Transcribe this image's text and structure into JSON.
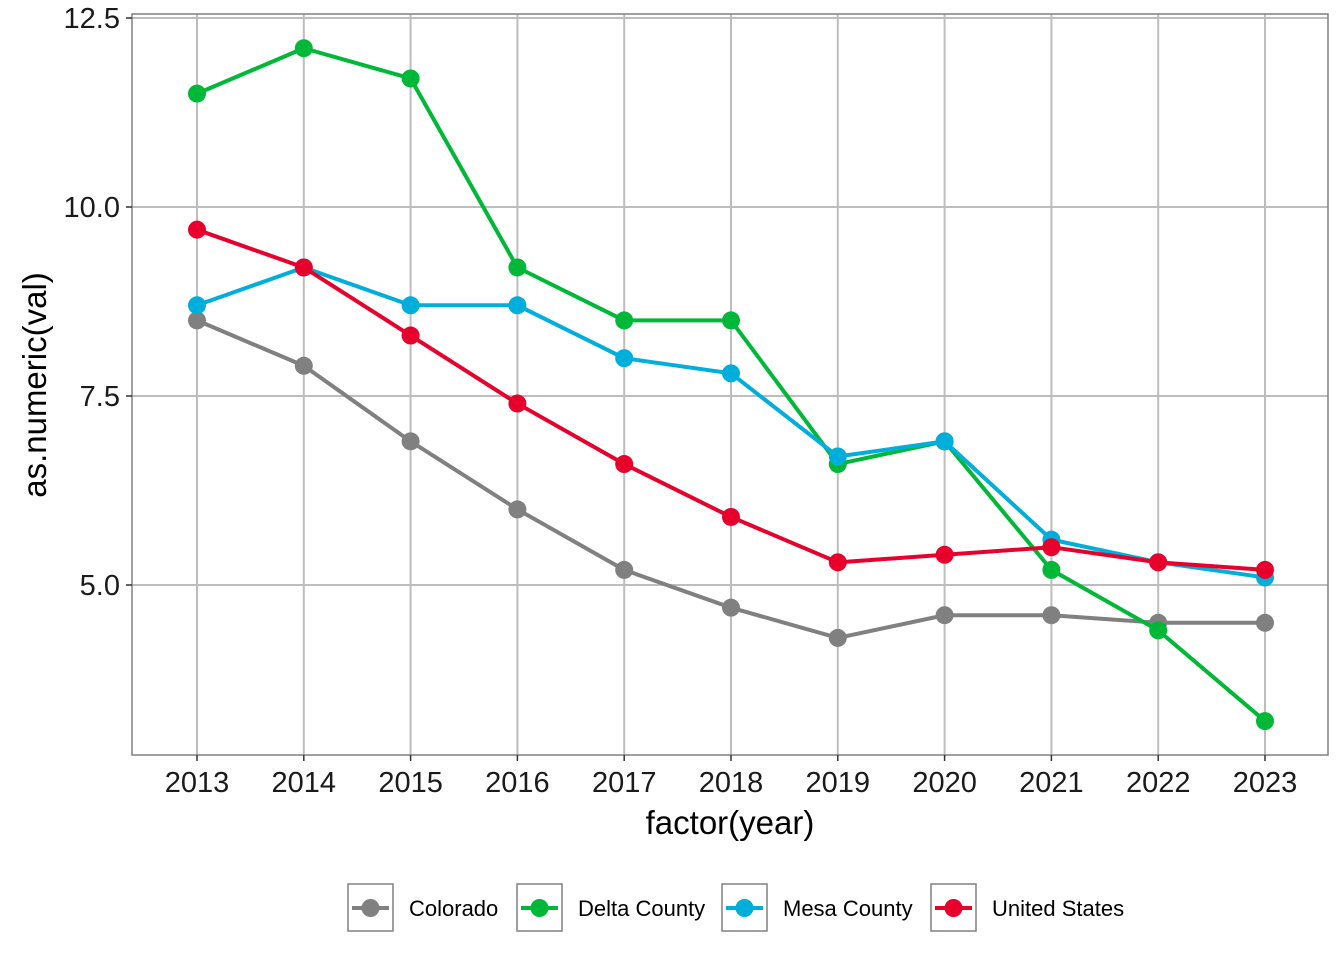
{
  "chart_data": {
    "type": "line",
    "title": "",
    "xlabel": "factor(year)",
    "ylabel": "as.numeric(val)",
    "categories": [
      "2013",
      "2014",
      "2015",
      "2016",
      "2017",
      "2018",
      "2019",
      "2020",
      "2021",
      "2022",
      "2023"
    ],
    "y_ticks": [
      "5.0",
      "7.5",
      "10.0",
      "12.5"
    ],
    "y_tick_values": [
      5.0,
      7.5,
      10.0,
      12.5
    ],
    "ylim": [
      2.75,
      12.5
    ],
    "grid": true,
    "legend_position": "bottom",
    "series": [
      {
        "name": "Colorado",
        "color": "#808080",
        "values": [
          8.5,
          7.9,
          6.9,
          6.0,
          5.2,
          4.7,
          4.3,
          4.6,
          4.6,
          4.5,
          4.5
        ]
      },
      {
        "name": "Delta County",
        "color": "#00B837",
        "values": [
          11.5,
          12.1,
          11.7,
          9.2,
          8.5,
          8.5,
          6.6,
          6.9,
          5.2,
          4.4,
          3.2
        ]
      },
      {
        "name": "Mesa County",
        "color": "#00AEDB",
        "values": [
          8.7,
          9.2,
          8.7,
          8.7,
          8.0,
          7.8,
          6.7,
          6.9,
          5.6,
          5.3,
          5.1
        ]
      },
      {
        "name": "United States",
        "color": "#E8002D",
        "values": [
          9.7,
          9.2,
          8.3,
          7.4,
          6.6,
          5.9,
          5.3,
          5.4,
          5.5,
          5.3,
          5.2
        ]
      }
    ]
  }
}
